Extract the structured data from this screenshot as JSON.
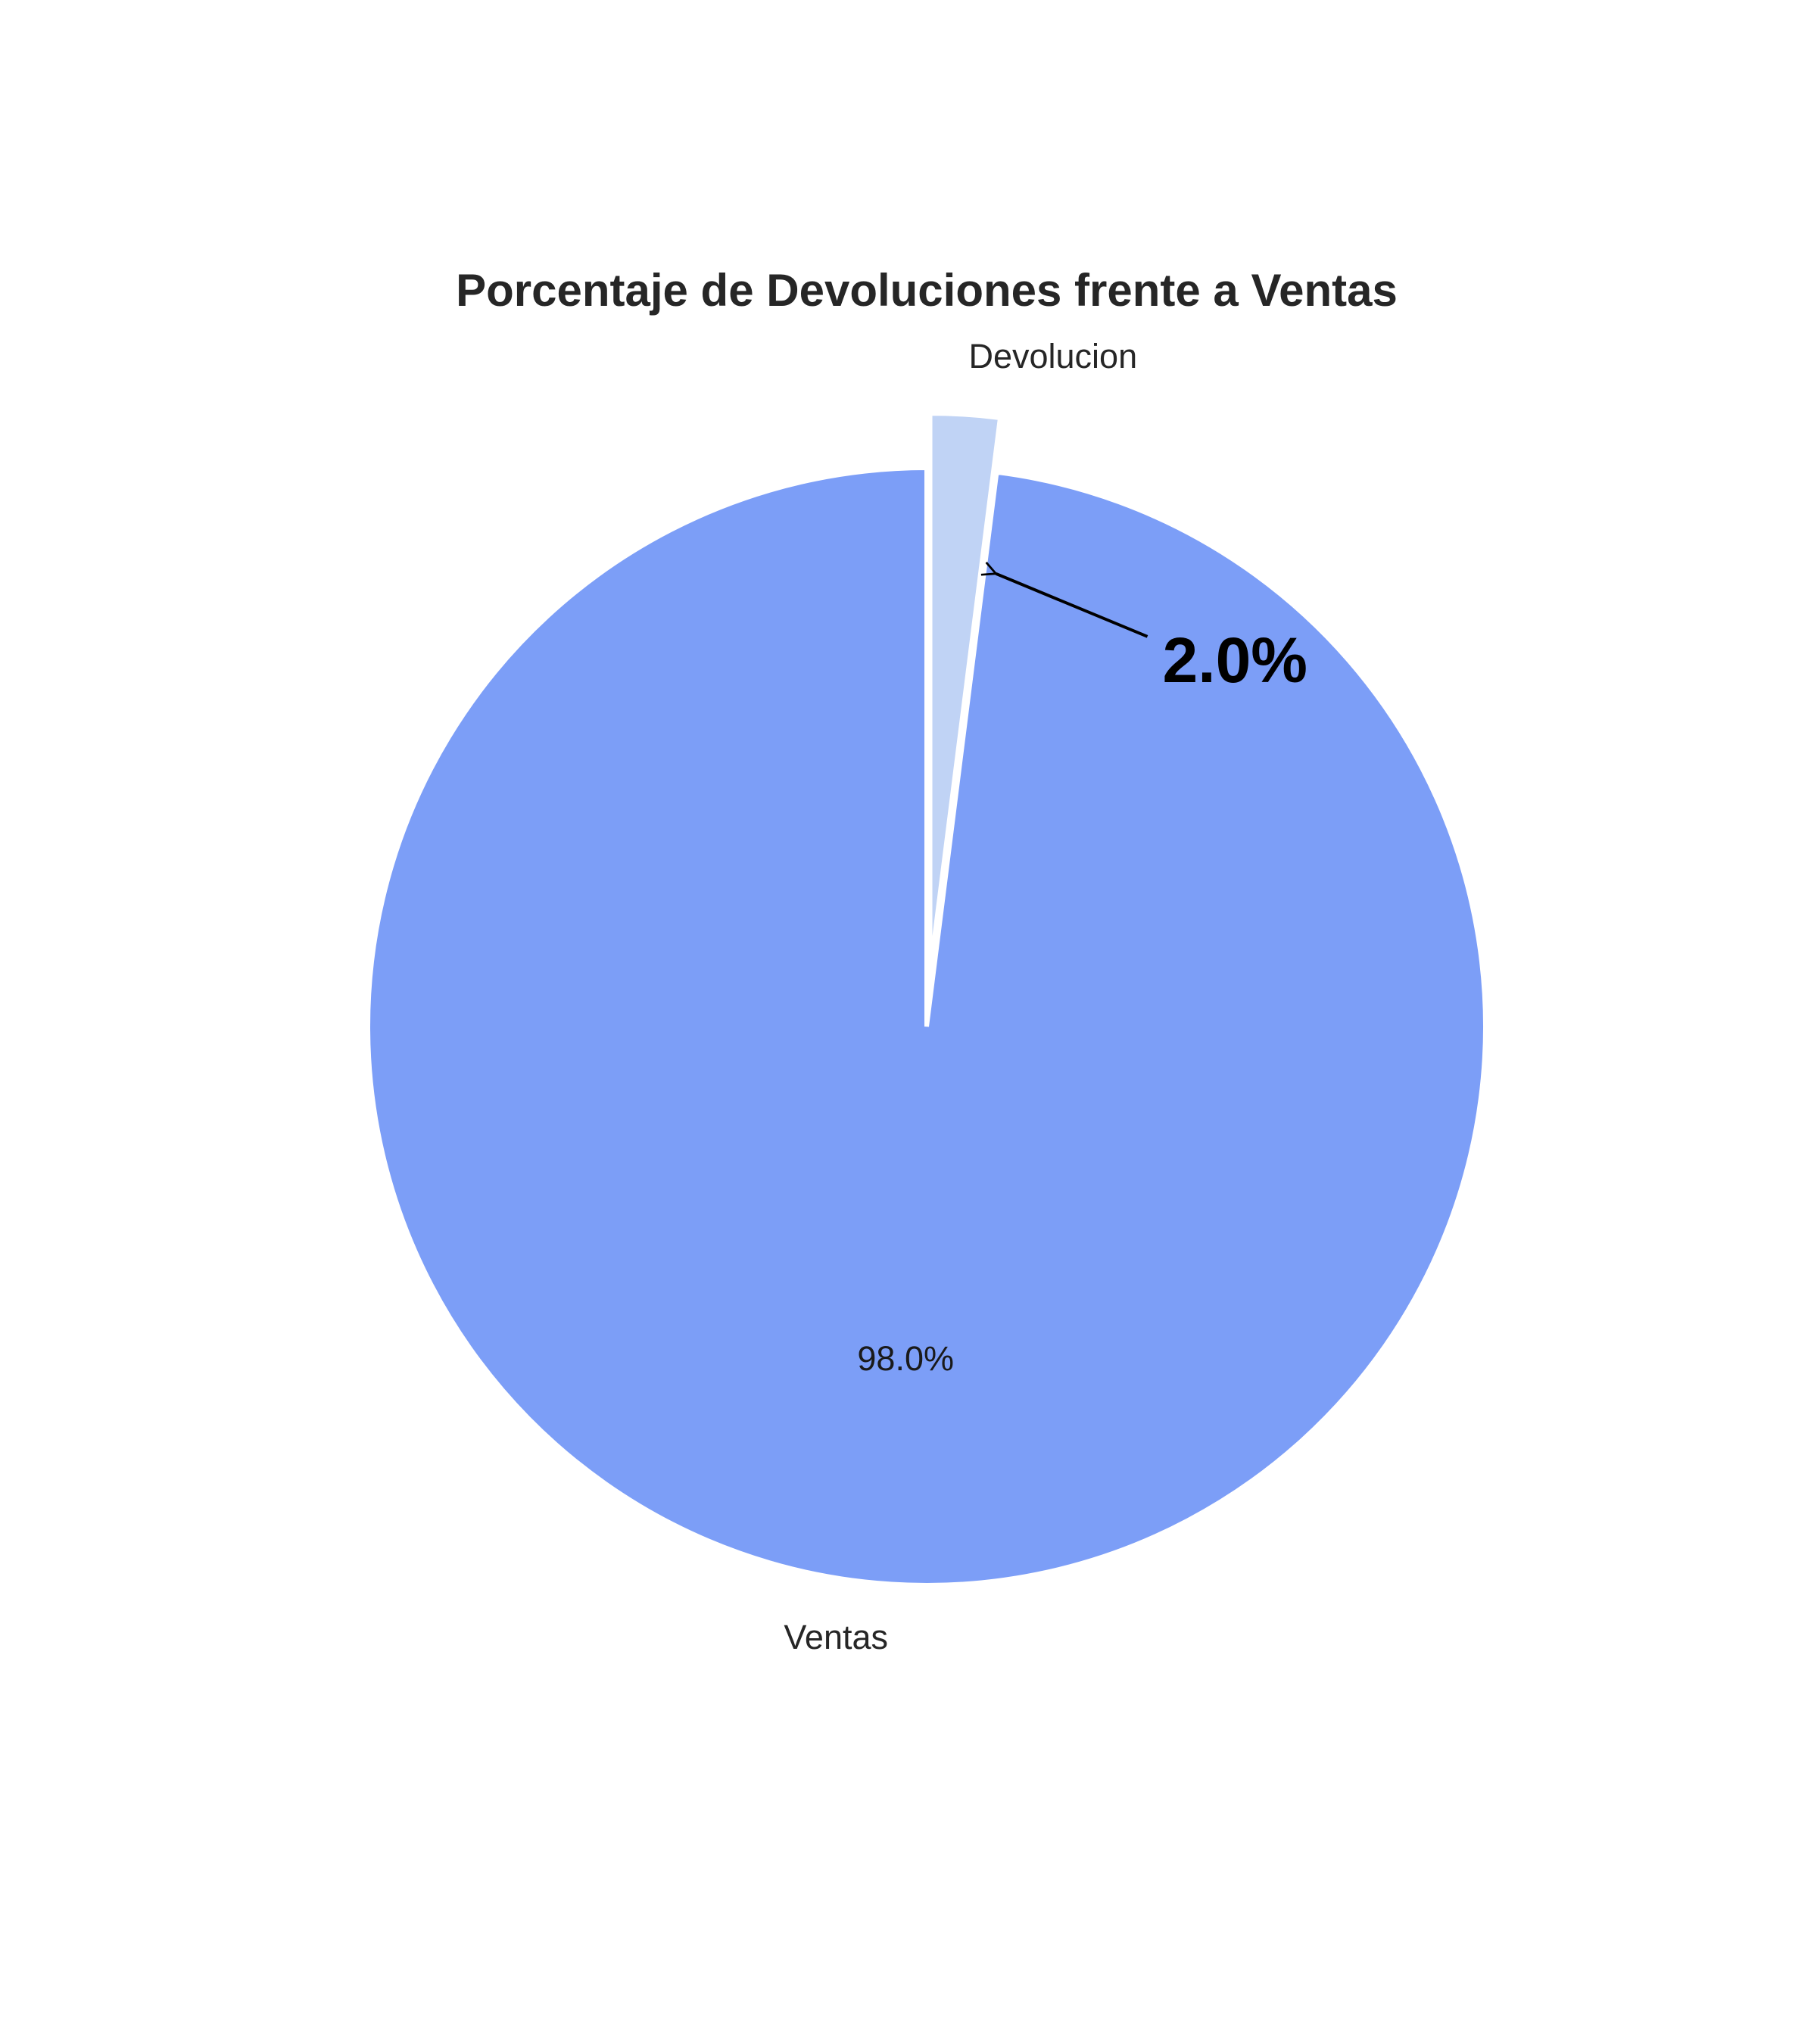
{
  "chart_data": {
    "type": "pie",
    "title": "Porcentaje de Devoluciones frente a Ventas",
    "categories": [
      "Devolucion",
      "Ventas"
    ],
    "values": [
      2.0,
      98.0
    ],
    "slice_labels": [
      "",
      "98.0%"
    ],
    "colors": [
      "#c0d3f5",
      "#7c9ef7"
    ],
    "exploded": [
      "Devolucion"
    ],
    "start_angle_deg": 90,
    "direction": "clockwise",
    "annotation": {
      "text": "2.0%",
      "target": "Devolucion",
      "arrow": true
    },
    "legend": "none"
  }
}
